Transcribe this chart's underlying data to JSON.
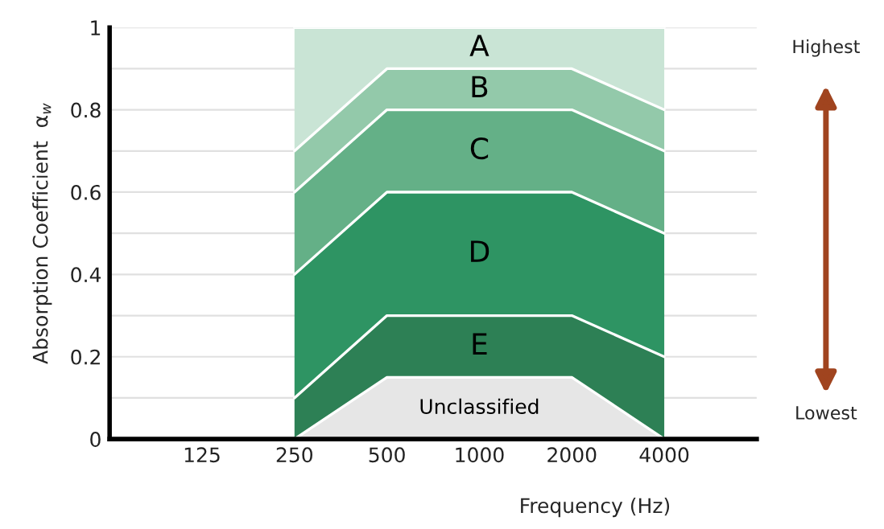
{
  "chart_data": {
    "type": "area",
    "stacked": true,
    "xlabel": "Frequency (Hz)",
    "ylabel": "Absorption Coefficient  α$_{w}$",
    "categories": [
      null,
      "125",
      "250",
      "500",
      "1000",
      "2000",
      "4000",
      null
    ],
    "series": [
      {
        "name": "Unclassified",
        "color": "#e6e6e6",
        "values": [
          null,
          null,
          0,
          0.15,
          0.15,
          0.15,
          0,
          null
        ]
      },
      {
        "name": "E",
        "color": "#2d8055",
        "values": [
          null,
          null,
          0.1,
          0.15,
          0.15,
          0.15,
          0.2,
          null
        ]
      },
      {
        "name": "D",
        "color": "#2e9463",
        "values": [
          null,
          null,
          0.3,
          0.3,
          0.3,
          0.3,
          0.3,
          null
        ]
      },
      {
        "name": "C",
        "color": "#64b087",
        "values": [
          null,
          null,
          0.2,
          0.2,
          0.2,
          0.2,
          0.2,
          null
        ]
      },
      {
        "name": "B",
        "color": "#93c9aa",
        "values": [
          null,
          null,
          0.1,
          0.1,
          0.1,
          0.1,
          0.1,
          null
        ]
      },
      {
        "name": "A",
        "color": "#c9e4d5",
        "values": [
          null,
          null,
          0.3,
          0.1,
          0.1,
          0.1,
          0.2,
          null
        ]
      }
    ],
    "ylim": [
      0,
      1
    ],
    "yticks": [
      0,
      {
        "value": 0.1,
        "label": null
      },
      0.2,
      {
        "value": 0.3,
        "label": null
      },
      0.4,
      {
        "value": 0.5,
        "label": null
      },
      0.6,
      {
        "value": 0.7,
        "label": null
      },
      0.8,
      {
        "value": 0.9,
        "label": null
      },
      1
    ],
    "grid": "y",
    "annotations": [
      "Highest",
      "Lowest"
    ]
  }
}
